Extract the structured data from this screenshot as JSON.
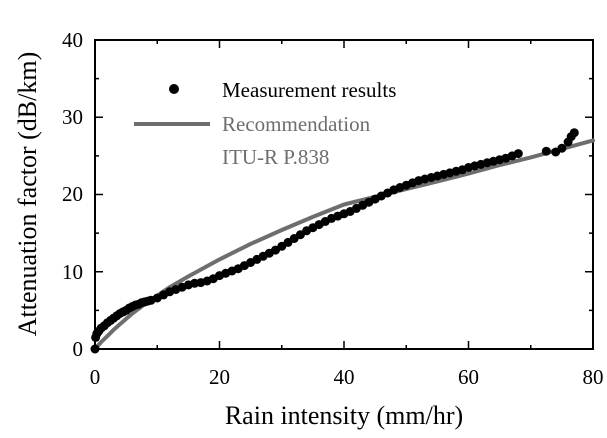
{
  "chart_data": {
    "type": "scatter",
    "xlabel": "Rain intensity (mm/hr)",
    "ylabel": "Attenuation factor (dB/km)",
    "xlim": [
      0,
      80
    ],
    "ylim": [
      0,
      40
    ],
    "xticks": [
      "0",
      "20",
      "40",
      "60",
      "80"
    ],
    "yticks": [
      "0",
      "10",
      "20",
      "30",
      "40"
    ],
    "grid": false,
    "legend_position": "top-left",
    "series": [
      {
        "name": "Measurement results",
        "kind": "points",
        "color": "#000000",
        "x": [
          0,
          0.1,
          0.3,
          0.6,
          1,
          1.5,
          2,
          2.5,
          3,
          3.5,
          4,
          4.5,
          5,
          5.5,
          6,
          6.5,
          7,
          7.5,
          8,
          8.5,
          9,
          10,
          11,
          12,
          13,
          14,
          15,
          16,
          17,
          18,
          19,
          20,
          21,
          22,
          23,
          24,
          25,
          26,
          27,
          28,
          29,
          30,
          31,
          32,
          33,
          34,
          35,
          36,
          37,
          38,
          39,
          40,
          41,
          42,
          43,
          44,
          45,
          46,
          47,
          48,
          49,
          50,
          51,
          52,
          53,
          54,
          55,
          56,
          57,
          58,
          59,
          60,
          61,
          62,
          63,
          64,
          65,
          66,
          67,
          68,
          72.5,
          74,
          75,
          76,
          76.5,
          77
        ],
        "y": [
          0,
          1.5,
          2,
          2.3,
          2.7,
          3.0,
          3.4,
          3.7,
          4.0,
          4.3,
          4.6,
          4.8,
          5.0,
          5.3,
          5.5,
          5.7,
          5.8,
          6.0,
          6.1,
          6.2,
          6.3,
          6.6,
          7.0,
          7.4,
          7.7,
          8.0,
          8.3,
          8.5,
          8.6,
          8.8,
          9.1,
          9.5,
          9.8,
          10.1,
          10.4,
          10.8,
          11.2,
          11.6,
          12.0,
          12.4,
          12.8,
          13.3,
          13.8,
          14.3,
          14.8,
          15.3,
          15.7,
          16.1,
          16.5,
          16.9,
          17.2,
          17.5,
          17.8,
          18.2,
          18.6,
          19.0,
          19.4,
          19.8,
          20.2,
          20.6,
          20.9,
          21.2,
          21.5,
          21.8,
          22.0,
          22.2,
          22.4,
          22.6,
          22.8,
          23.0,
          23.2,
          23.5,
          23.7,
          23.9,
          24.1,
          24.3,
          24.5,
          24.7,
          25.0,
          25.3,
          25.6,
          25.5,
          26.0,
          26.8,
          27.5,
          28.0
        ]
      },
      {
        "name": "Recommendation ITU-R P.838",
        "kind": "curve",
        "color": "#6e6e6e",
        "x": [
          0,
          1,
          2,
          3,
          4,
          5,
          6,
          8,
          10,
          12,
          15,
          20,
          25,
          30,
          35,
          40,
          45,
          50,
          55,
          60,
          65,
          70,
          75,
          80
        ],
        "y": [
          0,
          0.9,
          1.7,
          2.5,
          3.2,
          3.9,
          4.6,
          5.8,
          6.9,
          8.0,
          9.4,
          11.6,
          13.6,
          15.4,
          17.1,
          18.7,
          19.7,
          20.7,
          21.7,
          22.7,
          23.8,
          24.8,
          25.9,
          27.0
        ]
      }
    ]
  },
  "legend": {
    "measurement_label": "Measurement results",
    "recommendation_line1": "Recommendation",
    "recommendation_line2": "ITU-R P.838"
  }
}
